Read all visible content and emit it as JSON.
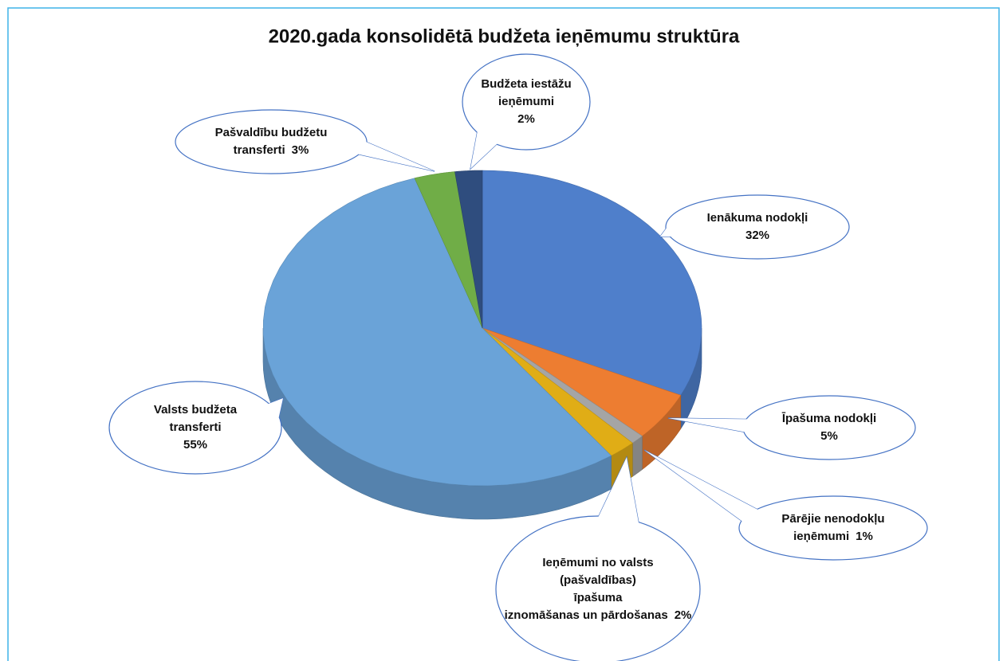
{
  "chart_data": {
    "type": "pie3d",
    "title": "2020.gada konsolidētā budžeta ieņēmumu struktūra",
    "categories": [
      "Ienākuma nodokļi",
      "Īpašuma nodokļi",
      "Pārējie nenodokļu ieņēmumi",
      "Ieņēmumi no valsts (pašvaldības) īpašuma iznomāšanas un pārdošanas",
      "Valsts budžeta transferti",
      "Pašvaldību budžetu transferti",
      "Budžeta iestāžu ieņēmumi"
    ],
    "values": [
      32,
      5,
      1,
      2,
      55,
      3,
      2
    ],
    "value_labels": [
      "32%",
      "5%",
      "1%",
      "2%",
      "55%",
      "3%",
      "2%"
    ],
    "colors": [
      "#4f7fcb",
      "#ed7d31",
      "#a5a5a5",
      "#e0ad16",
      "#6aa3d8",
      "#70ad47",
      "#2f4d7e"
    ]
  }
}
